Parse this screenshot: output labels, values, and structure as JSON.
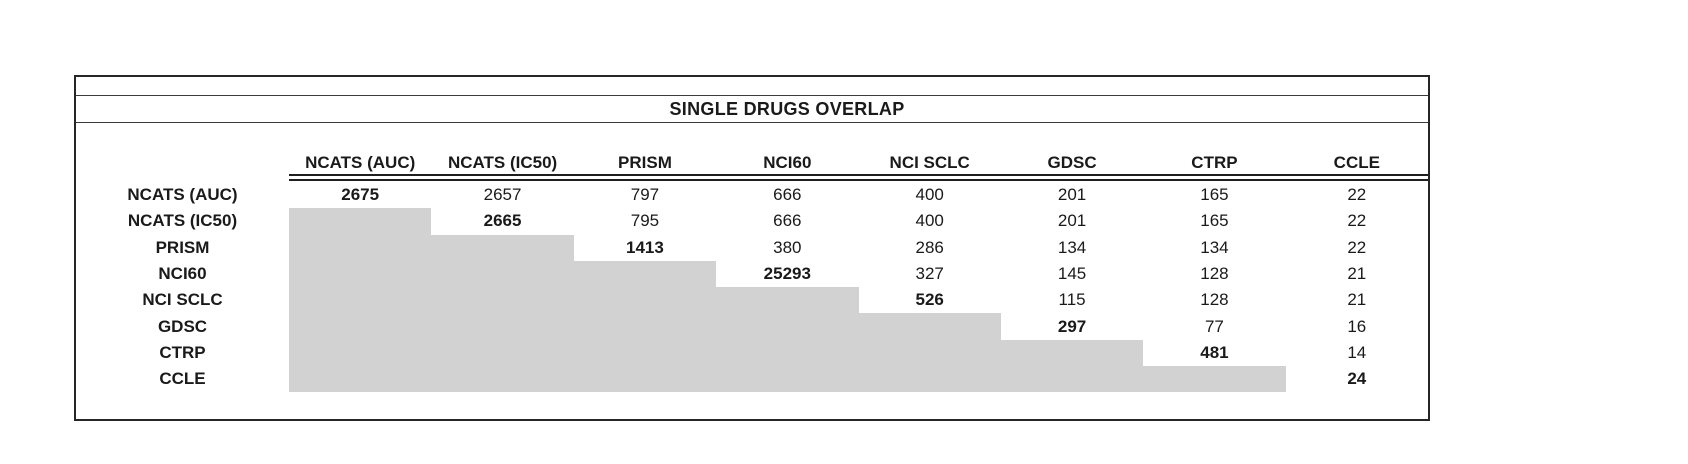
{
  "title": "SINGLE DRUGS OVERLAP",
  "table": {
    "columns": [
      "NCATS (AUC)",
      "NCATS (IC50)",
      "PRISM",
      "NCI60",
      "NCI SCLC",
      "GDSC",
      "CTRP",
      "CCLE"
    ],
    "rows": [
      {
        "label": "NCATS (AUC)",
        "values": [
          "2675",
          "2657",
          "797",
          "666",
          "400",
          "201",
          "165",
          "22"
        ]
      },
      {
        "label": "NCATS (IC50)",
        "values": [
          "",
          "2665",
          "795",
          "666",
          "400",
          "201",
          "165",
          "22"
        ]
      },
      {
        "label": "PRISM",
        "values": [
          "",
          "",
          "1413",
          "380",
          "286",
          "134",
          "134",
          "22"
        ]
      },
      {
        "label": "NCI60",
        "values": [
          "",
          "",
          "",
          "25293",
          "327",
          "145",
          "128",
          "21"
        ]
      },
      {
        "label": "NCI SCLC",
        "values": [
          "",
          "",
          "",
          "",
          "526",
          "115",
          "128",
          "21"
        ]
      },
      {
        "label": "GDSC",
        "values": [
          "",
          "",
          "",
          "",
          "",
          "297",
          "77",
          "16"
        ]
      },
      {
        "label": "CTRP",
        "values": [
          "",
          "",
          "",
          "",
          "",
          "",
          "481",
          "14"
        ]
      },
      {
        "label": "CCLE",
        "values": [
          "",
          "",
          "",
          "",
          "",
          "",
          "",
          "24"
        ]
      }
    ],
    "colors": {
      "shaded_cell": "#d2d2d2",
      "border": "#262626",
      "text": "#1a1a1a"
    }
  }
}
